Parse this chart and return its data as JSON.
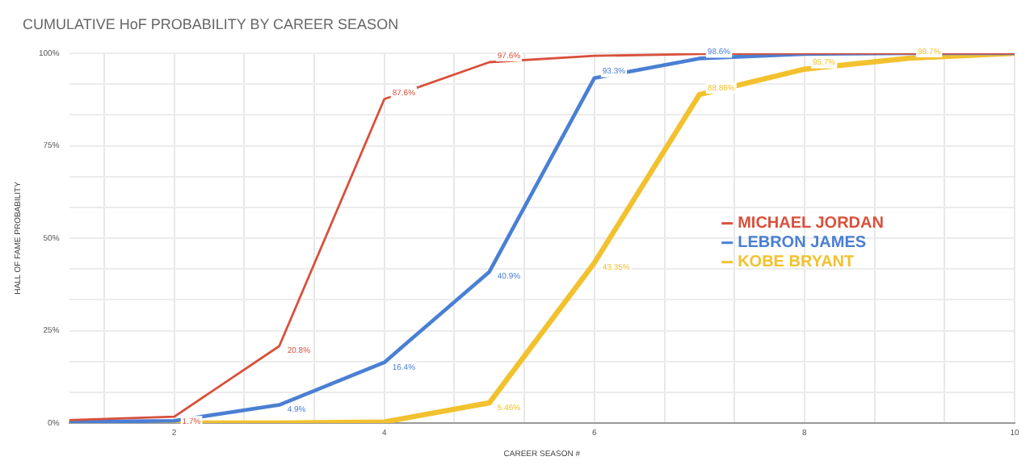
{
  "chart_data": {
    "type": "line",
    "title": "CUMULATIVE HoF PROBABILITY BY CAREER SEASON",
    "xlabel": "CAREER SEASON #",
    "ylabel": "HALL OF FAME PROBABILITY",
    "x": [
      1,
      2,
      3,
      4,
      5,
      6,
      7,
      8,
      9,
      10
    ],
    "series": [
      {
        "name": "MICHAEL JORDAN",
        "color": "#d9503c",
        "values": [
          0.8,
          1.7,
          20.8,
          87.6,
          97.6,
          99.3,
          99.8,
          100,
          100,
          100
        ],
        "value_labels": [
          null,
          "1.7%",
          "20.8%",
          "87.6%",
          "97.6%",
          null,
          null,
          null,
          null,
          null
        ]
      },
      {
        "name": "LEBRON JAMES",
        "color": "#4a7fd4",
        "values": [
          0.3,
          0.6,
          4.9,
          16.4,
          40.9,
          93.3,
          98.6,
          99.8,
          100,
          100
        ],
        "value_labels": [
          null,
          null,
          "4.9%",
          "16.4%",
          "40.9%",
          "93.3%",
          "98.6%",
          null,
          null,
          null
        ]
      },
      {
        "name": "KOBE BRYANT",
        "color": "#f2c12e",
        "values": [
          0,
          0,
          0,
          0.3,
          5.46,
          43.35,
          88.86,
          95.7,
          98.7,
          100
        ],
        "value_labels": [
          null,
          null,
          null,
          null,
          "5.46%",
          "43.35%",
          "88.86%",
          "95.7%",
          "98.7%",
          null
        ]
      }
    ],
    "xlim": [
      1,
      10
    ],
    "xticks": [
      {
        "value": 1.333,
        "label": null
      },
      2,
      {
        "value": 2.667,
        "label": null
      },
      {
        "value": 3.333,
        "label": null
      },
      4,
      {
        "value": 4.667,
        "label": null
      },
      {
        "value": 5.333,
        "label": null
      },
      6,
      {
        "value": 6.667,
        "label": null
      },
      {
        "value": 7.333,
        "label": null
      },
      8,
      {
        "value": 8.667,
        "label": null
      },
      {
        "value": 9.333,
        "label": null
      },
      10
    ],
    "ylim": [
      0,
      100
    ],
    "yticks": [
      {
        "value": 0,
        "label": "0%"
      },
      {
        "value": 8.333,
        "label": null
      },
      {
        "value": 16.667,
        "label": null
      },
      {
        "value": 25,
        "label": "25%"
      },
      {
        "value": 33.333,
        "label": null
      },
      {
        "value": 41.667,
        "label": null
      },
      {
        "value": 50,
        "label": "50%"
      },
      {
        "value": 58.333,
        "label": null
      },
      {
        "value": 66.667,
        "label": null
      },
      {
        "value": 75,
        "label": "75%"
      },
      {
        "value": 83.333,
        "label": null
      },
      {
        "value": 91.667,
        "label": null
      },
      {
        "value": 100,
        "label": "100%"
      }
    ],
    "grid": true,
    "legend": "center right",
    "marker": "none",
    "line_style": "solid"
  }
}
